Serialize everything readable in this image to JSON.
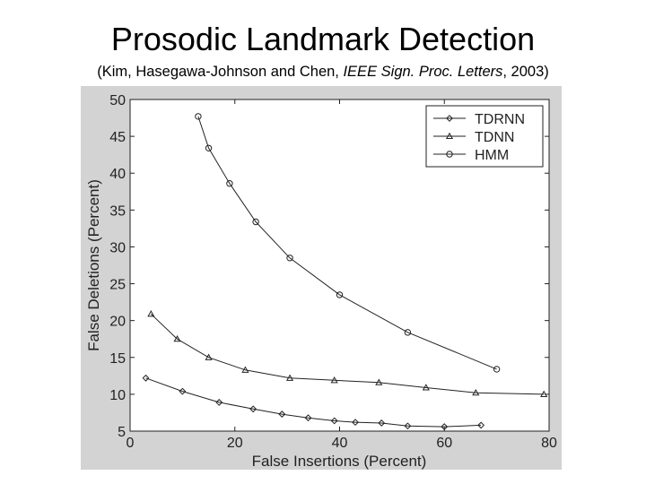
{
  "slide": {
    "title": "Prosodic Landmark Detection",
    "citation": {
      "part1": "(Kim, Hasegawa-Johnson and Chen, ",
      "journal": "IEEE Sign. Proc. Letters",
      "part2": ", 2003)"
    }
  },
  "chart_data": {
    "type": "line",
    "title": "",
    "xlabel": "False Insertions (Percent)",
    "ylabel": "False Deletions (Percent)",
    "xlim": [
      0,
      80
    ],
    "ylim": [
      5,
      50
    ],
    "xticks": [
      0,
      20,
      40,
      60,
      80
    ],
    "yticks": [
      5,
      10,
      15,
      20,
      25,
      30,
      35,
      40,
      45,
      50
    ],
    "grid": false,
    "legend_position": "top-right",
    "series": [
      {
        "name": "TDRNN",
        "marker": "diamond",
        "points": [
          [
            3,
            12.2
          ],
          [
            10,
            10.4
          ],
          [
            17,
            8.9
          ],
          [
            23.5,
            8.0
          ],
          [
            29,
            7.3
          ],
          [
            34,
            6.8
          ],
          [
            39,
            6.4
          ],
          [
            43,
            6.2
          ],
          [
            48,
            6.1
          ],
          [
            53,
            5.7
          ],
          [
            60,
            5.6
          ],
          [
            67,
            5.8
          ]
        ]
      },
      {
        "name": "TDNN",
        "marker": "triangle",
        "points": [
          [
            4,
            20.9
          ],
          [
            9,
            17.5
          ],
          [
            15,
            15.0
          ],
          [
            22,
            13.3
          ],
          [
            30.5,
            12.2
          ],
          [
            39,
            11.9
          ],
          [
            47.5,
            11.6
          ],
          [
            56.5,
            10.9
          ],
          [
            66,
            10.2
          ],
          [
            79,
            10.0
          ]
        ]
      },
      {
        "name": "HMM",
        "marker": "circle",
        "points": [
          [
            13,
            47.7
          ],
          [
            15,
            43.4
          ],
          [
            19,
            38.6
          ],
          [
            24,
            33.4
          ],
          [
            30.5,
            28.5
          ],
          [
            40,
            23.5
          ],
          [
            53,
            18.4
          ],
          [
            70,
            13.4
          ]
        ]
      }
    ]
  }
}
